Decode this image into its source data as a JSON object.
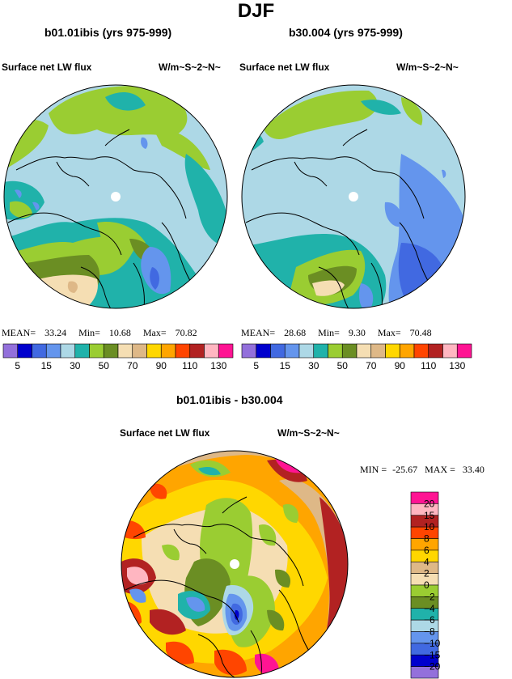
{
  "title": "DJF",
  "panels": [
    {
      "title": "b01.01ibis (yrs 975-999)",
      "variable": "Surface net LW flux",
      "units": "W/m~S~2~N~",
      "stats": {
        "mean_label": "MEAN=",
        "mean": "33.24",
        "min_label": "Min=",
        "min": "10.68",
        "max_label": "Max=",
        "max": "70.82"
      }
    },
    {
      "title": "b30.004 (yrs 975-999)",
      "variable": "Surface net LW flux",
      "units": "W/m~S~2~N~",
      "stats": {
        "mean_label": "MEAN=",
        "mean": "28.68",
        "min_label": "Min=",
        "min": "9.30",
        "max_label": "Max=",
        "max": "70.48"
      }
    }
  ],
  "diff": {
    "title": "b01.01ibis - b30.004",
    "variable": "Surface net LW flux",
    "units": "W/m~S~2~N~",
    "stats": {
      "min_label": "MIN =",
      "min": "-25.67",
      "max_label": "MAX =",
      "max": "33.40"
    }
  },
  "colors": {
    "abs_scale": [
      "#9370db",
      "#0000cd",
      "#4169e1",
      "#6495ed",
      "#add8e6",
      "#20b2aa",
      "#9acd32",
      "#6b8e23",
      "#f5deb3",
      "#deb887",
      "#ffd700",
      "#ffa500",
      "#ff4500",
      "#b22222",
      "#ffb6c1",
      "#ff1493"
    ],
    "diff_scale": [
      "#9370db",
      "#0000cd",
      "#4169e1",
      "#6495ed",
      "#add8e6",
      "#20b2aa",
      "#6b8e23",
      "#9acd32",
      "#f5deb3",
      "#deb887",
      "#ffd700",
      "#ffa500",
      "#ff4500",
      "#b22222",
      "#ffb6c1",
      "#ff1493"
    ]
  },
  "chart_data": [
    {
      "type": "heatmap",
      "projection": "north polar stereographic",
      "title": "b01.01ibis (yrs 975-999)",
      "variable": "Surface net LW flux",
      "units": "W/m~S~2~N~",
      "colorbar_levels": [
        5,
        10,
        15,
        20,
        30,
        40,
        50,
        60,
        70,
        80,
        90,
        100,
        110,
        120,
        130
      ],
      "colorbar_tick_labels": [
        "5",
        "15",
        "30",
        "50",
        "70",
        "90",
        "110",
        "130"
      ],
      "mean": 33.24,
      "min": 10.68,
      "max": 70.82
    },
    {
      "type": "heatmap",
      "projection": "north polar stereographic",
      "title": "b30.004 (yrs 975-999)",
      "variable": "Surface net LW flux",
      "units": "W/m~S~2~N~",
      "colorbar_levels": [
        5,
        10,
        15,
        20,
        30,
        40,
        50,
        60,
        70,
        80,
        90,
        100,
        110,
        120,
        130
      ],
      "colorbar_tick_labels": [
        "5",
        "15",
        "30",
        "50",
        "70",
        "90",
        "110",
        "130"
      ],
      "mean": 28.68,
      "min": 9.3,
      "max": 70.48
    },
    {
      "type": "heatmap",
      "projection": "north polar stereographic",
      "title": "b01.01ibis - b30.004",
      "variable": "Surface net LW flux",
      "units": "W/m~S~2~N~",
      "colorbar_levels": [
        -20,
        -15,
        -10,
        -8,
        -6,
        -4,
        -2,
        0,
        2,
        4,
        6,
        8,
        10,
        15,
        20
      ],
      "colorbar_tick_labels": [
        "20",
        "15",
        "10",
        "8",
        "6",
        "4",
        "2",
        "0",
        "−2",
        "−4",
        "−6",
        "−8",
        "−10",
        "−15",
        "−20"
      ],
      "min": -25.67,
      "max": 33.4
    }
  ]
}
